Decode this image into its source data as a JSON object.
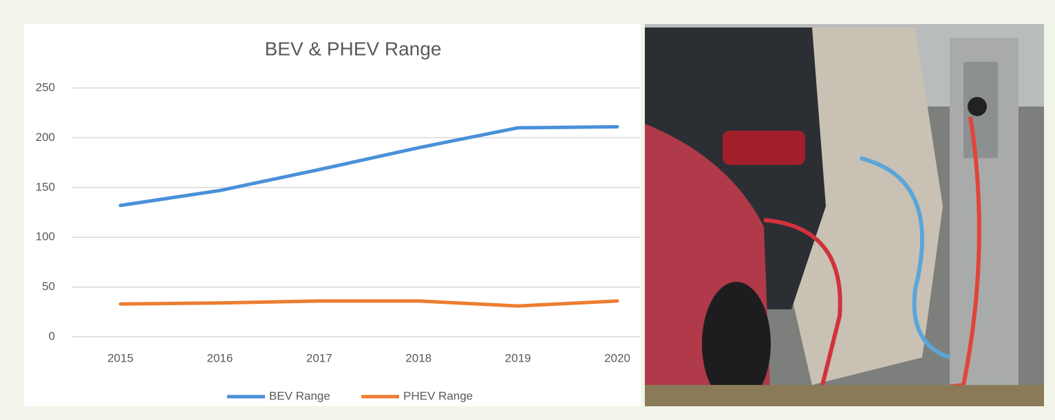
{
  "chart_data": {
    "type": "line",
    "title": "BEV & PHEV Range",
    "categories": [
      "2015",
      "2016",
      "2017",
      "2018",
      "2019",
      "2020"
    ],
    "series": [
      {
        "name": "BEV Range",
        "color": "#4a90d9",
        "values": [
          132,
          147,
          168,
          190,
          210,
          211
        ]
      },
      {
        "name": "PHEV Range",
        "color": "#ed7d31",
        "values": [
          33,
          34,
          36,
          36,
          31,
          36
        ]
      }
    ],
    "ylim": [
      0,
      250
    ],
    "yticks": [
      0,
      50,
      100,
      150,
      200,
      250
    ],
    "grid": true,
    "legend": "bottom"
  }
}
